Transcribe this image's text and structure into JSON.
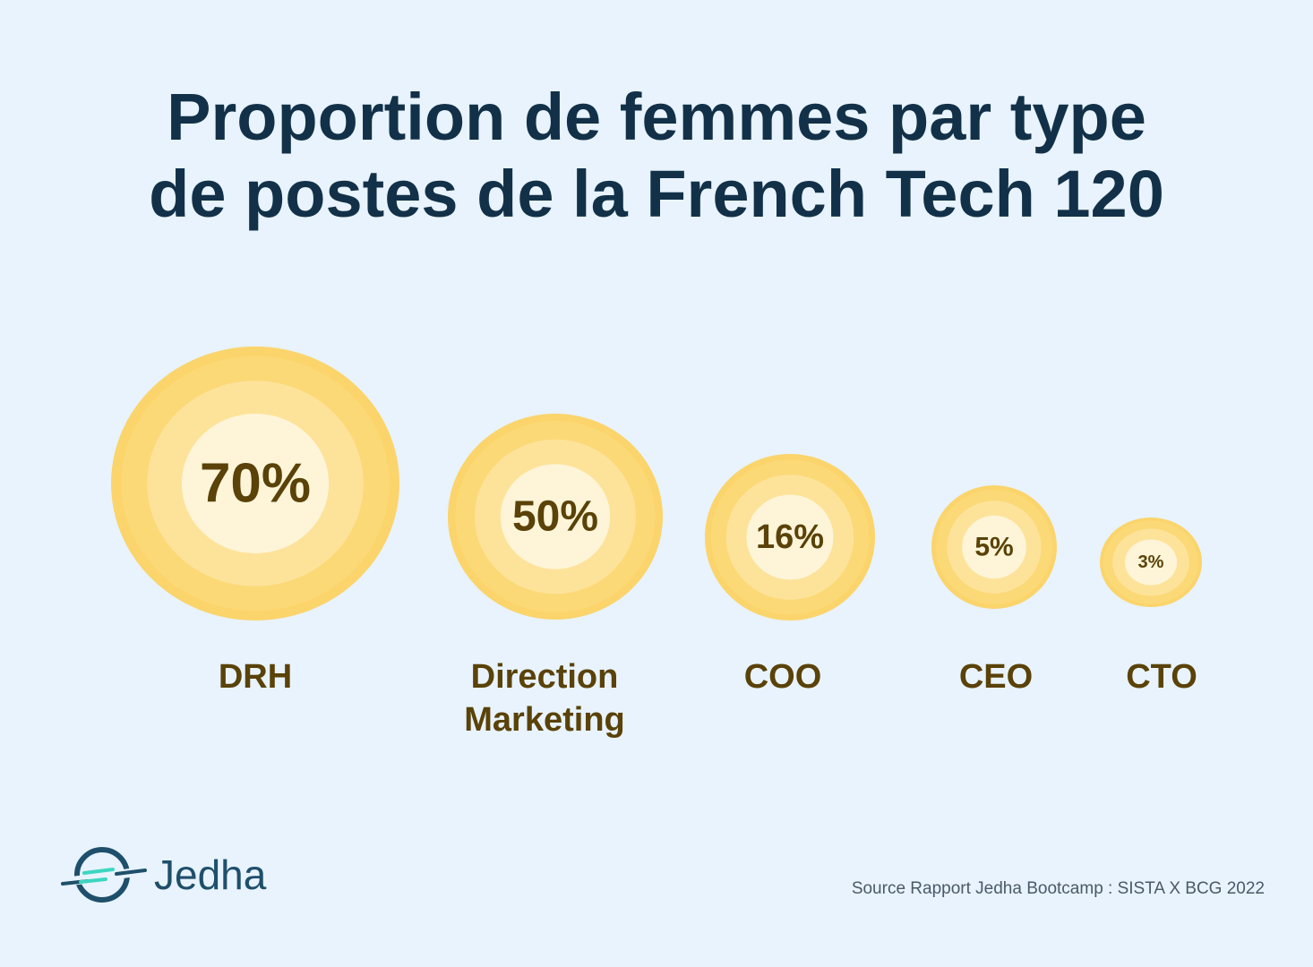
{
  "chart_data": {
    "type": "bubble",
    "title": "Proportion de femmes par type de postes de la French Tech 120",
    "categories": [
      "DRH",
      "Direction\nMarketing",
      "COO",
      "CEO",
      "CTO"
    ],
    "values": [
      70,
      50,
      16,
      5,
      3
    ],
    "value_labels": [
      "70%",
      "50%",
      "16%",
      "5%",
      "3%"
    ],
    "unit": "%"
  },
  "title_lines": [
    "Proportion de femmes par type",
    "de postes de la French Tech 120"
  ],
  "brand": {
    "name": "Jedha"
  },
  "source": "Source Rapport Jedha Bootcamp : SISTA X BCG 2022",
  "colors": {
    "outer": "#fbd46b",
    "middle": "#fde39a",
    "inner": "#fef5d9",
    "text": "#5a4208",
    "title": "#123148"
  }
}
